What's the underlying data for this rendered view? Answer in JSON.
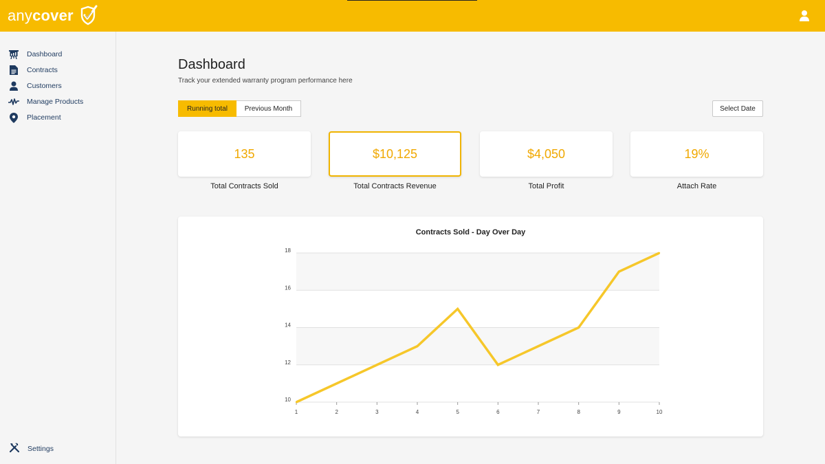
{
  "app": {
    "brand_part1": "any",
    "brand_part2": "cover"
  },
  "sidebar": {
    "items": [
      {
        "label": "Dashboard",
        "icon": "presentation-chart-icon"
      },
      {
        "label": "Contracts",
        "icon": "document-icon"
      },
      {
        "label": "Customers",
        "icon": "person-icon"
      },
      {
        "label": "Manage Products",
        "icon": "activity-pulse-icon"
      },
      {
        "label": "Placement",
        "icon": "map-pin-icon"
      }
    ],
    "settings_label": "Settings"
  },
  "main": {
    "title": "Dashboard",
    "subtitle": "Track your extended warranty program performance here",
    "toggle": {
      "running_total": "Running total",
      "previous_month": "Previous Month"
    },
    "select_date": "Select Date"
  },
  "kpis": [
    {
      "value": "135",
      "label": "Total Contracts Sold"
    },
    {
      "value": "$10,125",
      "label": "Total Contracts Revenue"
    },
    {
      "value": "$4,050",
      "label": "Total Profit"
    },
    {
      "value": "19%",
      "label": "Attach Rate"
    }
  ],
  "colors": {
    "accent": "#f7bb00",
    "line": "#f6c72a",
    "nav_text": "#1e3a5f"
  },
  "chart_data": {
    "type": "line",
    "title": "Contracts Sold - Day Over Day",
    "x": [
      1,
      2,
      3,
      4,
      5,
      6,
      7,
      8,
      9,
      10
    ],
    "series": [
      {
        "values": [
          10,
          11,
          12,
          13,
          15,
          12,
          13,
          14,
          17,
          18
        ]
      }
    ],
    "xlim": [
      1,
      10
    ],
    "ylim": [
      10,
      18
    ],
    "yticks": [
      10,
      12,
      14,
      16,
      18
    ],
    "grid": true
  }
}
